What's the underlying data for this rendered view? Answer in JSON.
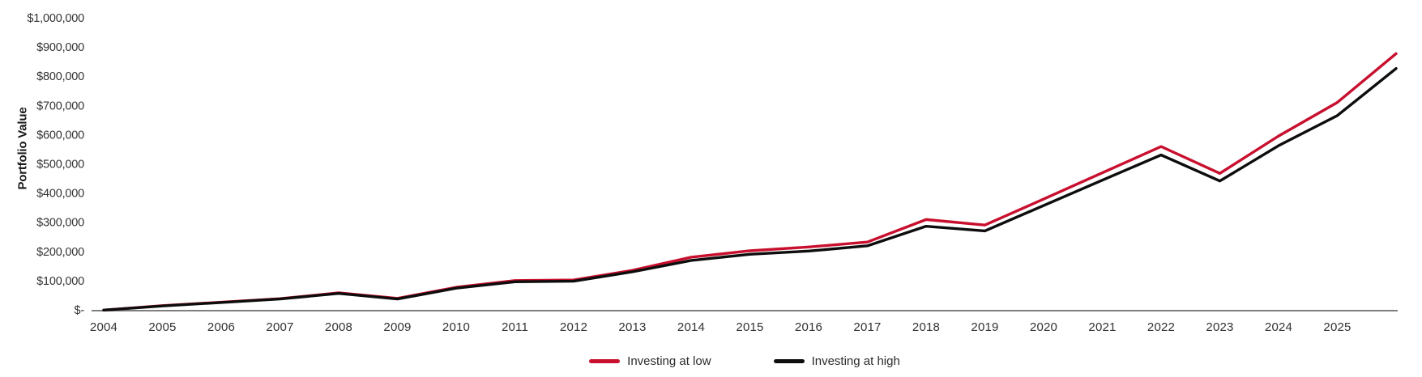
{
  "chart_data": {
    "type": "line",
    "title": "",
    "xlabel": "",
    "ylabel": "Portfolio Value",
    "x": [
      2004,
      2005,
      2006,
      2007,
      2008,
      2009,
      2010,
      2011,
      2012,
      2013,
      2014,
      2015,
      2016,
      2017,
      2018,
      2019,
      2020,
      2021,
      2022,
      2023,
      2024,
      2025,
      2026
    ],
    "x_tick_labels": [
      "2004",
      "2005",
      "2006",
      "2007",
      "2008",
      "2009",
      "2010",
      "2011",
      "2012",
      "2013",
      "2014",
      "2015",
      "2016",
      "2017",
      "2018",
      "2019",
      "2020",
      "2021",
      "2022",
      "2023",
      "2024",
      "2025"
    ],
    "series": [
      {
        "name": "Investing at low",
        "color": "#C8102E",
        "values": [
          2000,
          17000,
          29000,
          41000,
          61000,
          42000,
          80000,
          103000,
          105000,
          138000,
          183000,
          205000,
          218000,
          235000,
          312000,
          293000,
          382000,
          472000,
          562000,
          470000,
          598000,
          713000,
          880000
        ]
      },
      {
        "name": "Investing at high",
        "color": "#0D0D0D",
        "values": [
          2000,
          16000,
          28000,
          40000,
          59000,
          40000,
          77000,
          99000,
          101000,
          133000,
          172000,
          193000,
          204000,
          222000,
          289000,
          273000,
          360000,
          447000,
          533000,
          444000,
          565000,
          668000,
          829000
        ]
      }
    ],
    "ylim": [
      0,
      1000000
    ],
    "y_ticks": [
      {
        "label": "$-",
        "value": 0
      },
      {
        "label": "$100,000",
        "value": 100000
      },
      {
        "label": "$200,000",
        "value": 200000
      },
      {
        "label": "$300,000",
        "value": 300000
      },
      {
        "label": "$400,000",
        "value": 400000
      },
      {
        "label": "$500,000",
        "value": 500000
      },
      {
        "label": "$600,000",
        "value": 600000
      },
      {
        "label": "$700,000",
        "value": 700000
      },
      {
        "label": "$800,000",
        "value": 800000
      },
      {
        "label": "$900,000",
        "value": 900000
      },
      {
        "label": "$1,000,000",
        "value": 1000000
      }
    ],
    "grid": false,
    "legend_position": "bottom",
    "axis_color": "#7F7F7F",
    "tick_text_color": "#333333"
  }
}
